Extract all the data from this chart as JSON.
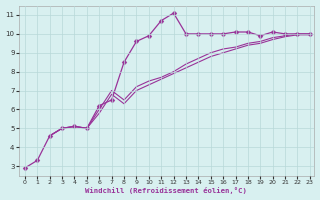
{
  "xlabel": "Windchill (Refroidissement éolien,°C)",
  "bg_color": "#d8f0f0",
  "grid_color": "#b8d8d8",
  "line_color": "#993399",
  "xlim": [
    -0.5,
    23.3
  ],
  "ylim": [
    2.5,
    11.5
  ],
  "xticks": [
    0,
    1,
    2,
    3,
    4,
    5,
    6,
    7,
    8,
    9,
    10,
    11,
    12,
    13,
    14,
    15,
    16,
    17,
    18,
    19,
    20,
    21,
    22,
    23
  ],
  "yticks": [
    3,
    4,
    5,
    6,
    7,
    8,
    9,
    10,
    11
  ],
  "line1_x": [
    0,
    1,
    2,
    3,
    4,
    5,
    6,
    7,
    8,
    9,
    10,
    11,
    12,
    13,
    14,
    15,
    16,
    17,
    18,
    19,
    20,
    21,
    22,
    23
  ],
  "line1_y": [
    2.9,
    3.3,
    4.6,
    5.0,
    5.1,
    5.0,
    6.2,
    6.5,
    8.5,
    9.6,
    9.9,
    10.7,
    11.1,
    10.0,
    10.0,
    10.0,
    10.0,
    10.1,
    10.1,
    9.9,
    10.1,
    10.0,
    10.0,
    10.0
  ],
  "line2_x": [
    2,
    3,
    4,
    5,
    6,
    7,
    8,
    9,
    10,
    11,
    12,
    13,
    14,
    15,
    16,
    17,
    18,
    19,
    20,
    21,
    22,
    23
  ],
  "line2_y": [
    4.6,
    5.0,
    5.1,
    5.0,
    6.0,
    7.0,
    6.5,
    7.2,
    7.5,
    7.7,
    8.0,
    8.4,
    8.7,
    9.0,
    9.2,
    9.3,
    9.5,
    9.6,
    9.8,
    9.9,
    10.0,
    10.0
  ],
  "line3_x": [
    2,
    3,
    4,
    5,
    6,
    7,
    8,
    9,
    10,
    11,
    12,
    13,
    14,
    15,
    16,
    17,
    18,
    19,
    20,
    21,
    22,
    23
  ],
  "line3_y": [
    4.6,
    5.0,
    5.1,
    5.0,
    5.8,
    6.8,
    6.3,
    7.0,
    7.3,
    7.6,
    7.9,
    8.2,
    8.5,
    8.8,
    9.0,
    9.2,
    9.4,
    9.5,
    9.7,
    9.85,
    9.95,
    9.95
  ]
}
